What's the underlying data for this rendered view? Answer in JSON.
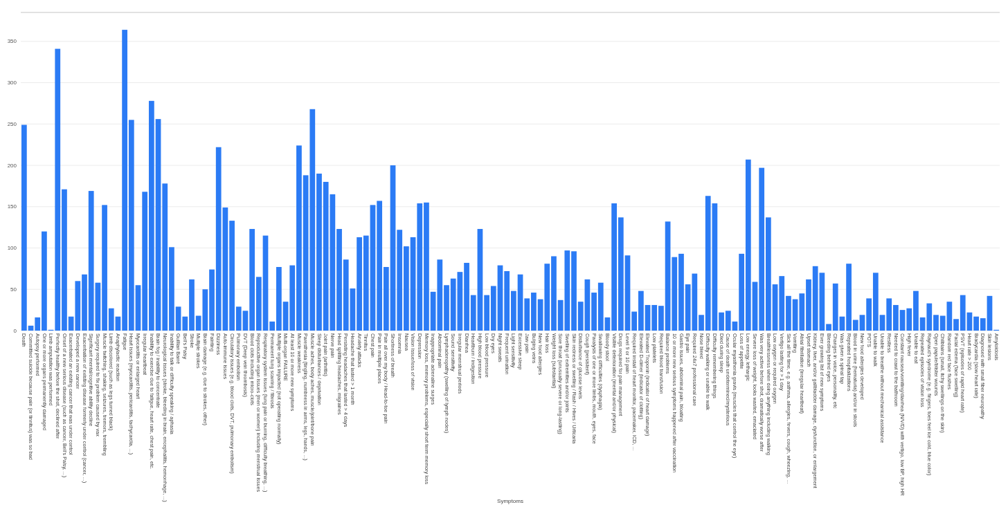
{
  "chart_data": {
    "type": "bar",
    "xlabel": "Symptoms",
    "color": "#2b7bf5",
    "ylim": [
      0,
      385
    ],
    "yticks": [
      0,
      50,
      100,
      150,
      200,
      250,
      300,
      350
    ],
    "grid": "y",
    "categories": [
      "Death",
      "Committed suicide because pain (or tinnitus) was so bad",
      "Autopsy performed",
      "One or more organs permanently damaged",
      "Limb amputation was performed",
      "Perfectly healthy before the shot, declined after",
      "Onset of a new serious disease (such as cancer, Bell's Palsy, ...)",
      "Exacerbated an existing cancer that was under control",
      "Developed a new cancer",
      "Exacerbation of existing disease formerly under control (cancer, ...)",
      "Significant mental/cognitive ability decline",
      "Surgery required to fix problem caused by vax",
      "Muscle twitching, shaking, seizures, tremors, trembling",
      "Limb discolored (such as legs turned black)",
      "Anaphylactic reaction",
      "Fatigue",
      "Heart issues (myocarditis, pericarditis, tachycardia, ...)",
      "Myocarditis or enlarged heart",
      "Irregular heartbeat",
      "Inability to exercise due to fatigue, heart rate, chest pain, etc.",
      "Brain fog / inability to concentrate",
      "Neurological issues (stroke, bleeding in brain, encephalitis, hemorrhage, ...)",
      "Inability to talk or difficulty speaking / aphasia",
      "Guillian Barré",
      "Bell's Palsy",
      "Stroke",
      "Multiple strokes",
      "Brain damage (e.g. due to strokes, other)",
      "Fainting",
      "Dizziness",
      "Auto-immune issues",
      "Circulatory issues (e.g. blood clots, DVT, pulmonary embolism)",
      "Pulmonary embolism",
      "DVT (Deep vein thrombosis)",
      "Blood clots including micro-clots",
      "Reproductive organ issues (men or women) including menstrual issues",
      "Respiratory system issues (lung pain or burning, difficulty breathing, ...)",
      "Permanent lung scarring / fibrosis",
      "Multiple organs impacted (not operating normally)",
      "Multi-organ FAILURE",
      "At least 10 or more new symptoms",
      "Muscle weakness",
      "Paresthesia (tingling, numbness in arms, legs, hands, ...)",
      "Muscle aches, body aches, muscle/joint/bone pain",
      "Sleep disturbances / deprivation",
      "Joint pain (arthritis)",
      "Nerve pain",
      "Head splitting headaches, migraines",
      "Persisting headaches that lasted > 4 days",
      "Headache that lasted > 1 month",
      "Anxiety attacks",
      "Tinnitus",
      "Chest pain",
      "Pain in multiple places",
      "Pain all over my body / Head-to-toe pain",
      "Shortness of breath",
      "Insomnia",
      "Nausea",
      "Vision issue/loss of vision",
      "Depression",
      "Memory loss, memory problems, especially short term memory loss",
      "Inappropriate adrenaline surges",
      "Abdominal pain",
      "Lymphadenopathy (swelling of lymph nodes)",
      "Sound sensitivity",
      "Irregular menstrual periods",
      "Diarrhea",
      "Heartburn / indigestion",
      "High blood pressure",
      "Low blood pressure",
      "Dry eyes",
      "Night sweats",
      "Frequent urination",
      "Light sensitivity",
      "Excessive sleep",
      "Jaw pain",
      "Bulging veins",
      "New food allergies",
      "Hair loss",
      "Weight loss (substantial)",
      "Sore throat (unusually severe or long-lasting)",
      "Swelling of extremities and/or joints",
      "Skin redness or swelling / Rash / Hives / Urticaria",
      "Disturbance of glucose levels",
      "Cough (persistent)",
      "Paralysis of one or more limbs, mouth, eyes, face",
      "Swallowing difficulties (dysphagia)",
      "Bloody stool",
      "Visible deterioration (mental and/or physical)",
      "Drugs required for pain management",
      "Level 9 or 10 pain",
      "Required install of heart monitor, pacemaker, ICD, ...",
      "Elevated D-dimer (indicator of clotting)",
      "Elevated Troponin (indicator of heart damage)",
      "Low platelets",
      "Required blood transfusion",
      "Balance problems",
      "10 or more new serious symptoms happened after vaccination",
      "Gastro issues, abdominal pain, bloating",
      "Eye pain",
      "Required 24x7 professional care",
      "Nose bleed",
      "Difficulty walking or unable to walk",
      "Difficulty remembering things",
      "Died during sleep",
      "Cause of death undetermined/mysterious",
      "Ocular myasthenia gravis (muscles that control the eye)",
      "Loss of appetite",
      "Low energy, lethargic",
      "Severe loss of weight, looks wasted, emaciated",
      "Was very active before shot, dramatically worse after",
      "Breathlessness when doing anything including walking",
      "Low oxygen or required oxygen",
      "Vertigo lasting for > 1 day",
      "Sick all the time, e.g. asthma, allergies, fevers, cough, wheezing, ...",
      "Vomiting",
      "Atrial fibrillation (irregular heartbeat)",
      "Upset stomach",
      "Kidney, liver, and/or gallbladder damage, dysfunction, or enlargement",
      "Ever growing list of new symptoms",
      "Bleeding behind eyes",
      "Changes in voice, personality, etc",
      "Was given a spinal tap",
      "Repeated hospitalizations",
      "Blood in urine (hematuria) and/or in stools",
      "New food allergies developed",
      "POTS",
      "Unable to walk",
      "Unable to breathe without mechanical assistance",
      "Restless",
      "Needed to crawl to the bathroom",
      "Constant nausea/vomiting/diarrhea (N/V/D) with vertigo, low BP, high HR",
      "High fever",
      "Unable to eat",
      "Repeated episodes of vision loss",
      "Raynaud's syndrome (e.g. fingers, toes feel ice cold, blue color)",
      "Open papule/blister wounds",
      "Chilblains (small, itchy swellings on the skin)",
      "Random red face flushes",
      "Facial edema (face swelling)",
      "PSVT (episodes of rapid heart rate)",
      "Heart rate > 200",
      "Bradycardia (slow heart rate)",
      "Diagnosed with small fiber neuropathy",
      "Skin lesions",
      "Amyloidosis"
    ],
    "values": [
      249,
      6,
      16,
      120,
      1,
      341,
      171,
      17,
      60,
      68,
      169,
      58,
      152,
      27,
      17,
      364,
      255,
      55,
      168,
      278,
      256,
      178,
      101,
      29,
      17,
      62,
      18,
      50,
      74,
      222,
      149,
      133,
      29,
      24,
      123,
      65,
      115,
      11,
      77,
      35,
      79,
      224,
      188,
      268,
      190,
      180,
      165,
      123,
      86,
      51,
      113,
      115,
      152,
      157,
      77,
      200,
      122,
      102,
      113,
      154,
      155,
      47,
      86,
      55,
      63,
      71,
      82,
      43,
      123,
      43,
      54,
      79,
      72,
      48,
      68,
      39,
      46,
      38,
      81,
      90,
      37,
      97,
      96,
      35,
      62,
      46,
      58,
      16,
      154,
      137,
      91,
      23,
      48,
      31,
      31,
      30,
      132,
      89,
      93,
      56,
      69,
      19,
      163,
      154,
      22,
      24,
      11,
      93,
      207,
      59,
      197,
      137,
      56,
      66,
      42,
      38,
      45,
      62,
      78,
      70,
      8,
      57,
      17,
      81,
      13,
      19,
      39,
      70,
      19,
      39,
      31,
      25,
      27,
      48,
      16,
      33,
      19,
      18,
      35,
      14,
      43,
      22,
      17,
      15,
      42,
      1
    ]
  }
}
